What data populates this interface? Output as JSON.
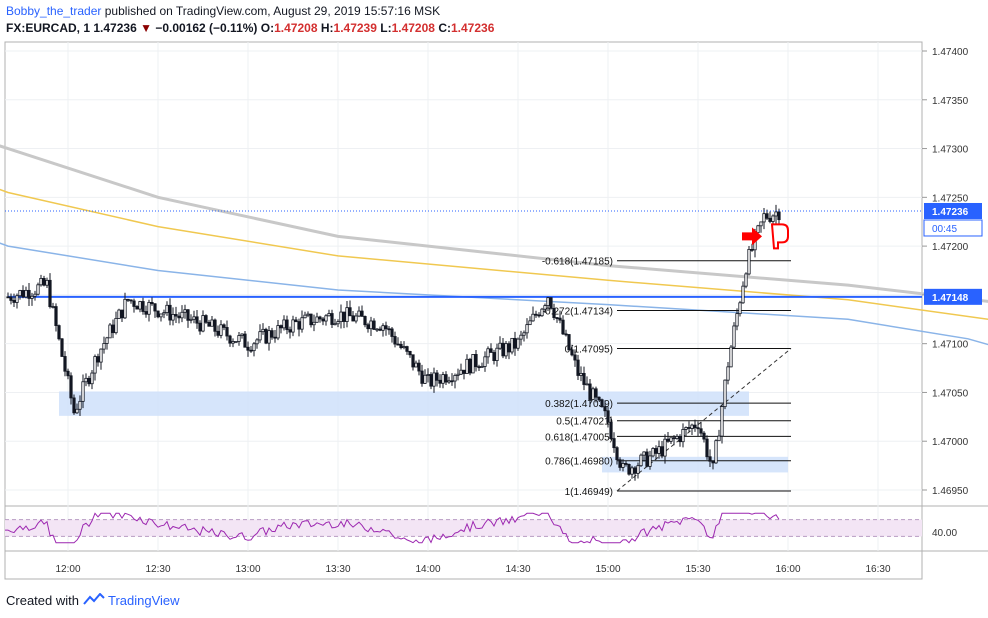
{
  "header": {
    "author": "Bobby_the_trader",
    "published": "published on TradingView.com, August 29, 2019 15:57:16 MSK",
    "symbol": "FX:EURCAD, 1",
    "last": "1.47236",
    "change": "−0.00162 (−0.11%)",
    "o_label": "O:",
    "o": "1.47208",
    "h_label": "H:",
    "h": "1.47239",
    "l_label": "L:",
    "l": "1.47208",
    "c_label": "C:",
    "c": "1.47236"
  },
  "footer": {
    "created_with": "Created with",
    "brand": "TradingView"
  },
  "colors": {
    "up": "#ffffff",
    "down": "#131722",
    "ma_gray": "#c8c8c8",
    "ma_yellow": "#f0c850",
    "ma_blue": "#8ab4e8",
    "level": "#2962ff",
    "zone": "#cfe0fa",
    "rsi": "#9c27b0",
    "rsi_band": "#f3e5f5",
    "marker": "#ff0000",
    "price_tag": "#2962ff"
  },
  "chart_data": {
    "type": "candlestick",
    "symbol": "FX:EURCAD",
    "interval": "1",
    "x_ticks": [
      "12:00",
      "12:30",
      "13:00",
      "13:30",
      "14:00",
      "14:30",
      "15:00",
      "15:30",
      "16:00",
      "16:30"
    ],
    "y_ticks": [
      "1.47400",
      "1.47350",
      "1.47300",
      "1.47250",
      "1.47200",
      "1.47150",
      "1.47100",
      "1.47050",
      "1.47000",
      "1.46950"
    ],
    "ylim": [
      1.46925,
      1.4741
    ],
    "price_tags": [
      {
        "label": "1.47236",
        "value": 1.47236,
        "style": "solid"
      },
      {
        "label": "00:45",
        "style": "countdown"
      },
      {
        "label": "1.47148",
        "value": 1.47148,
        "style": "solid"
      }
    ],
    "horizontal_level": 1.47148,
    "fib_levels": [
      {
        "label": "-0.618(1.47185)",
        "value": 1.47185
      },
      {
        "label": "-0.272(1.47134)",
        "value": 1.47134
      },
      {
        "label": "0(1.47095)",
        "value": 1.47095
      },
      {
        "label": "0.382(1.47039)",
        "value": 1.47039
      },
      {
        "label": "0.5(1.47021)",
        "value": 1.47021
      },
      {
        "label": "0.618(1.47005)",
        "value": 1.47005
      },
      {
        "label": "0.786(1.46980)",
        "value": 1.4698
      },
      {
        "label": "1(1.46949)",
        "value": 1.46949
      }
    ],
    "zones": [
      {
        "from_time": "11:57",
        "to_time": "15:47",
        "low": 1.47026,
        "high": 1.47051
      },
      {
        "from_time": "14:58",
        "to_time": "16:00",
        "low": 1.46968,
        "high": 1.46984
      }
    ],
    "rsi": {
      "level_label": "40.00",
      "upper": 70,
      "lower": 30
    },
    "candles_anchor": [
      {
        "t": "11:40",
        "p": 1.47148
      },
      {
        "t": "11:53",
        "p": 1.4716
      },
      {
        "t": "12:02",
        "p": 1.4703
      },
      {
        "t": "12:10",
        "p": 1.4709
      },
      {
        "t": "12:20",
        "p": 1.47145
      },
      {
        "t": "12:45",
        "p": 1.4712
      },
      {
        "t": "13:00",
        "p": 1.471
      },
      {
        "t": "13:15",
        "p": 1.4712
      },
      {
        "t": "13:30",
        "p": 1.4713
      },
      {
        "t": "13:45",
        "p": 1.4712
      },
      {
        "t": "14:00",
        "p": 1.4706
      },
      {
        "t": "14:15",
        "p": 1.4708
      },
      {
        "t": "14:30",
        "p": 1.471
      },
      {
        "t": "14:40",
        "p": 1.4715
      },
      {
        "t": "14:50",
        "p": 1.4707
      },
      {
        "t": "15:00",
        "p": 1.4702
      },
      {
        "t": "15:05",
        "p": 1.4697
      },
      {
        "t": "15:15",
        "p": 1.46985
      },
      {
        "t": "15:30",
        "p": 1.4702
      },
      {
        "t": "15:35",
        "p": 1.4697
      },
      {
        "t": "15:40",
        "p": 1.4708
      },
      {
        "t": "15:46",
        "p": 1.4718
      },
      {
        "t": "15:52",
        "p": 1.4723
      },
      {
        "t": "15:57",
        "p": 1.47236
      }
    ]
  }
}
